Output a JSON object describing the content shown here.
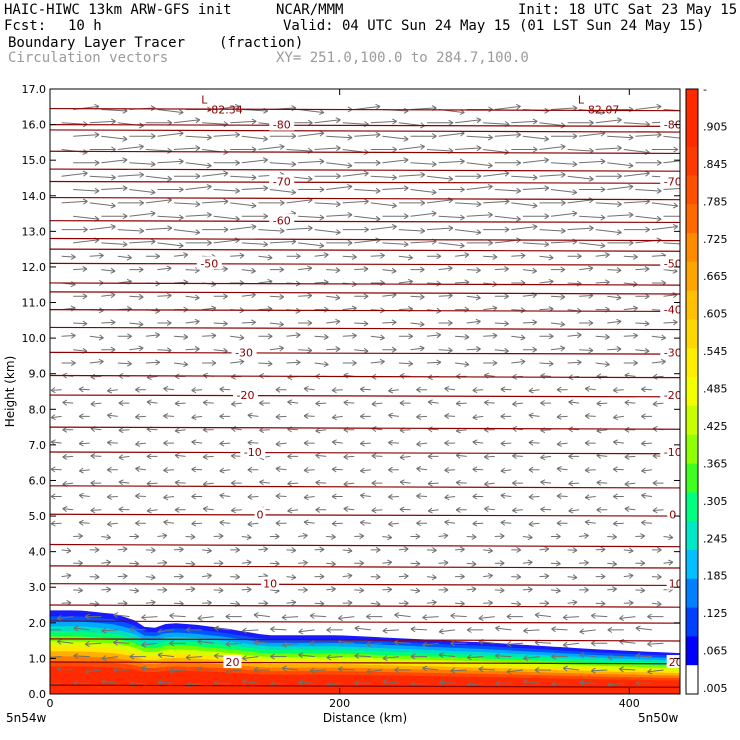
{
  "header": {
    "model": "HAIC-HIWC 13km ARW-GFS init",
    "org": "NCAR/MMM",
    "init": "Init: 18 UTC Sat 23 May 15",
    "fcst_label": "Fcst:",
    "fcst_value": "10 h",
    "valid": "Valid: 04 UTC Sun 24 May 15 (01 LST Sun 24 May 15)",
    "field1": "Boundary Layer Tracer",
    "field1_units": "(fraction)",
    "field2": "Circulation vectors",
    "xsec": "XY= 251.0,100.0 to 284.7,100.0"
  },
  "colors": {
    "isotherm": "#8b0000",
    "vector": "#707070",
    "axis": "#000000"
  },
  "chart_data": {
    "type": "heatmap",
    "title": "Boundary Layer Tracer (fraction)",
    "xlabel": "Distance (km)",
    "ylabel": "Height (km)",
    "xlim": [
      0,
      435
    ],
    "ylim": [
      0,
      17
    ],
    "x_ticks": [
      0,
      200,
      400
    ],
    "y_ticks": [
      "0.0",
      "1.0",
      "2.0",
      "3.0",
      "4.0",
      "5.0",
      "6.0",
      "7.0",
      "8.0",
      "9.0",
      "10.0",
      "11.0",
      "12.0",
      "13.0",
      "14.0",
      "15.0",
      "16.0",
      "17.0"
    ],
    "x_endpoints": {
      "left": "5n54w",
      "right": "5n50w"
    },
    "colorbar": {
      "labels": [
        "-",
        ".905",
        ".845",
        ".785",
        ".725",
        ".665",
        ".605",
        ".545",
        ".485",
        ".425",
        ".365",
        ".305",
        ".245",
        ".185",
        ".125",
        ".065",
        ".005"
      ],
      "colors": [
        "#ff2a00",
        "#ff2a00",
        "#ff3a00",
        "#ff5000",
        "#ff6a00",
        "#ff8c00",
        "#ffa500",
        "#ffc000",
        "#ffd700",
        "#ffee00",
        "#f4ff00",
        "#c8ff00",
        "#90ff00",
        "#40ff20",
        "#00ff80",
        "#00e8c8",
        "#00c0ff",
        "#0080ff",
        "#0040ff",
        "#0000ff",
        "#ffffff"
      ]
    },
    "tracer_top_km": [
      {
        "x": 0,
        "top": 2.35
      },
      {
        "x": 20,
        "top": 2.35
      },
      {
        "x": 45,
        "top": 2.25
      },
      {
        "x": 60,
        "top": 2.05
      },
      {
        "x": 68,
        "top": 1.8
      },
      {
        "x": 82,
        "top": 2.0
      },
      {
        "x": 100,
        "top": 1.95
      },
      {
        "x": 120,
        "top": 1.85
      },
      {
        "x": 150,
        "top": 1.65
      },
      {
        "x": 200,
        "top": 1.65
      },
      {
        "x": 250,
        "top": 1.55
      },
      {
        "x": 300,
        "top": 1.45
      },
      {
        "x": 340,
        "top": 1.35
      },
      {
        "x": 380,
        "top": 1.25
      },
      {
        "x": 435,
        "top": 1.15
      }
    ],
    "isotherms": [
      {
        "label": "20",
        "height": 0.9,
        "label_x": [
          126,
          432
        ]
      },
      {
        "label": "10",
        "height": 3.1,
        "label_x": [
          152,
          432
        ]
      },
      {
        "label": "0",
        "height": 5.05,
        "label_x": [
          145,
          430
        ]
      },
      {
        "label": "-10",
        "height": 6.8,
        "label_x": [
          140,
          430
        ]
      },
      {
        "label": "-20",
        "height": 8.4,
        "label_x": [
          135,
          430
        ]
      },
      {
        "label": "-30",
        "height": 9.6,
        "label_x": [
          134,
          430
        ]
      },
      {
        "label": "-40",
        "height": 10.8,
        "label_x": [
          430
        ]
      },
      {
        "label": "-50",
        "height": 12.1,
        "label_x": [
          110,
          430
        ]
      },
      {
        "label": "-60",
        "height": 13.3,
        "label_x": [
          160
        ]
      },
      {
        "label": "-70",
        "height": 14.4,
        "label_x": [
          160,
          430
        ]
      },
      {
        "label": "-80",
        "height": 16.0,
        "label_x": [
          160,
          430
        ]
      }
    ],
    "extra_isotherm_heights": [
      0.25,
      1.55,
      2.05,
      2.5,
      3.6,
      4.2,
      5.85,
      7.5,
      8.95,
      10.3,
      11.3,
      11.55,
      12.5,
      12.8,
      13.95,
      14.75,
      15.25,
      15.85,
      16.45
    ],
    "minimum_labels": [
      {
        "label": "L",
        "value": "-82.34",
        "x": 110,
        "height": 16.7
      },
      {
        "label": "L",
        "value": "-82.07",
        "x": 370,
        "height": 16.7
      }
    ]
  }
}
